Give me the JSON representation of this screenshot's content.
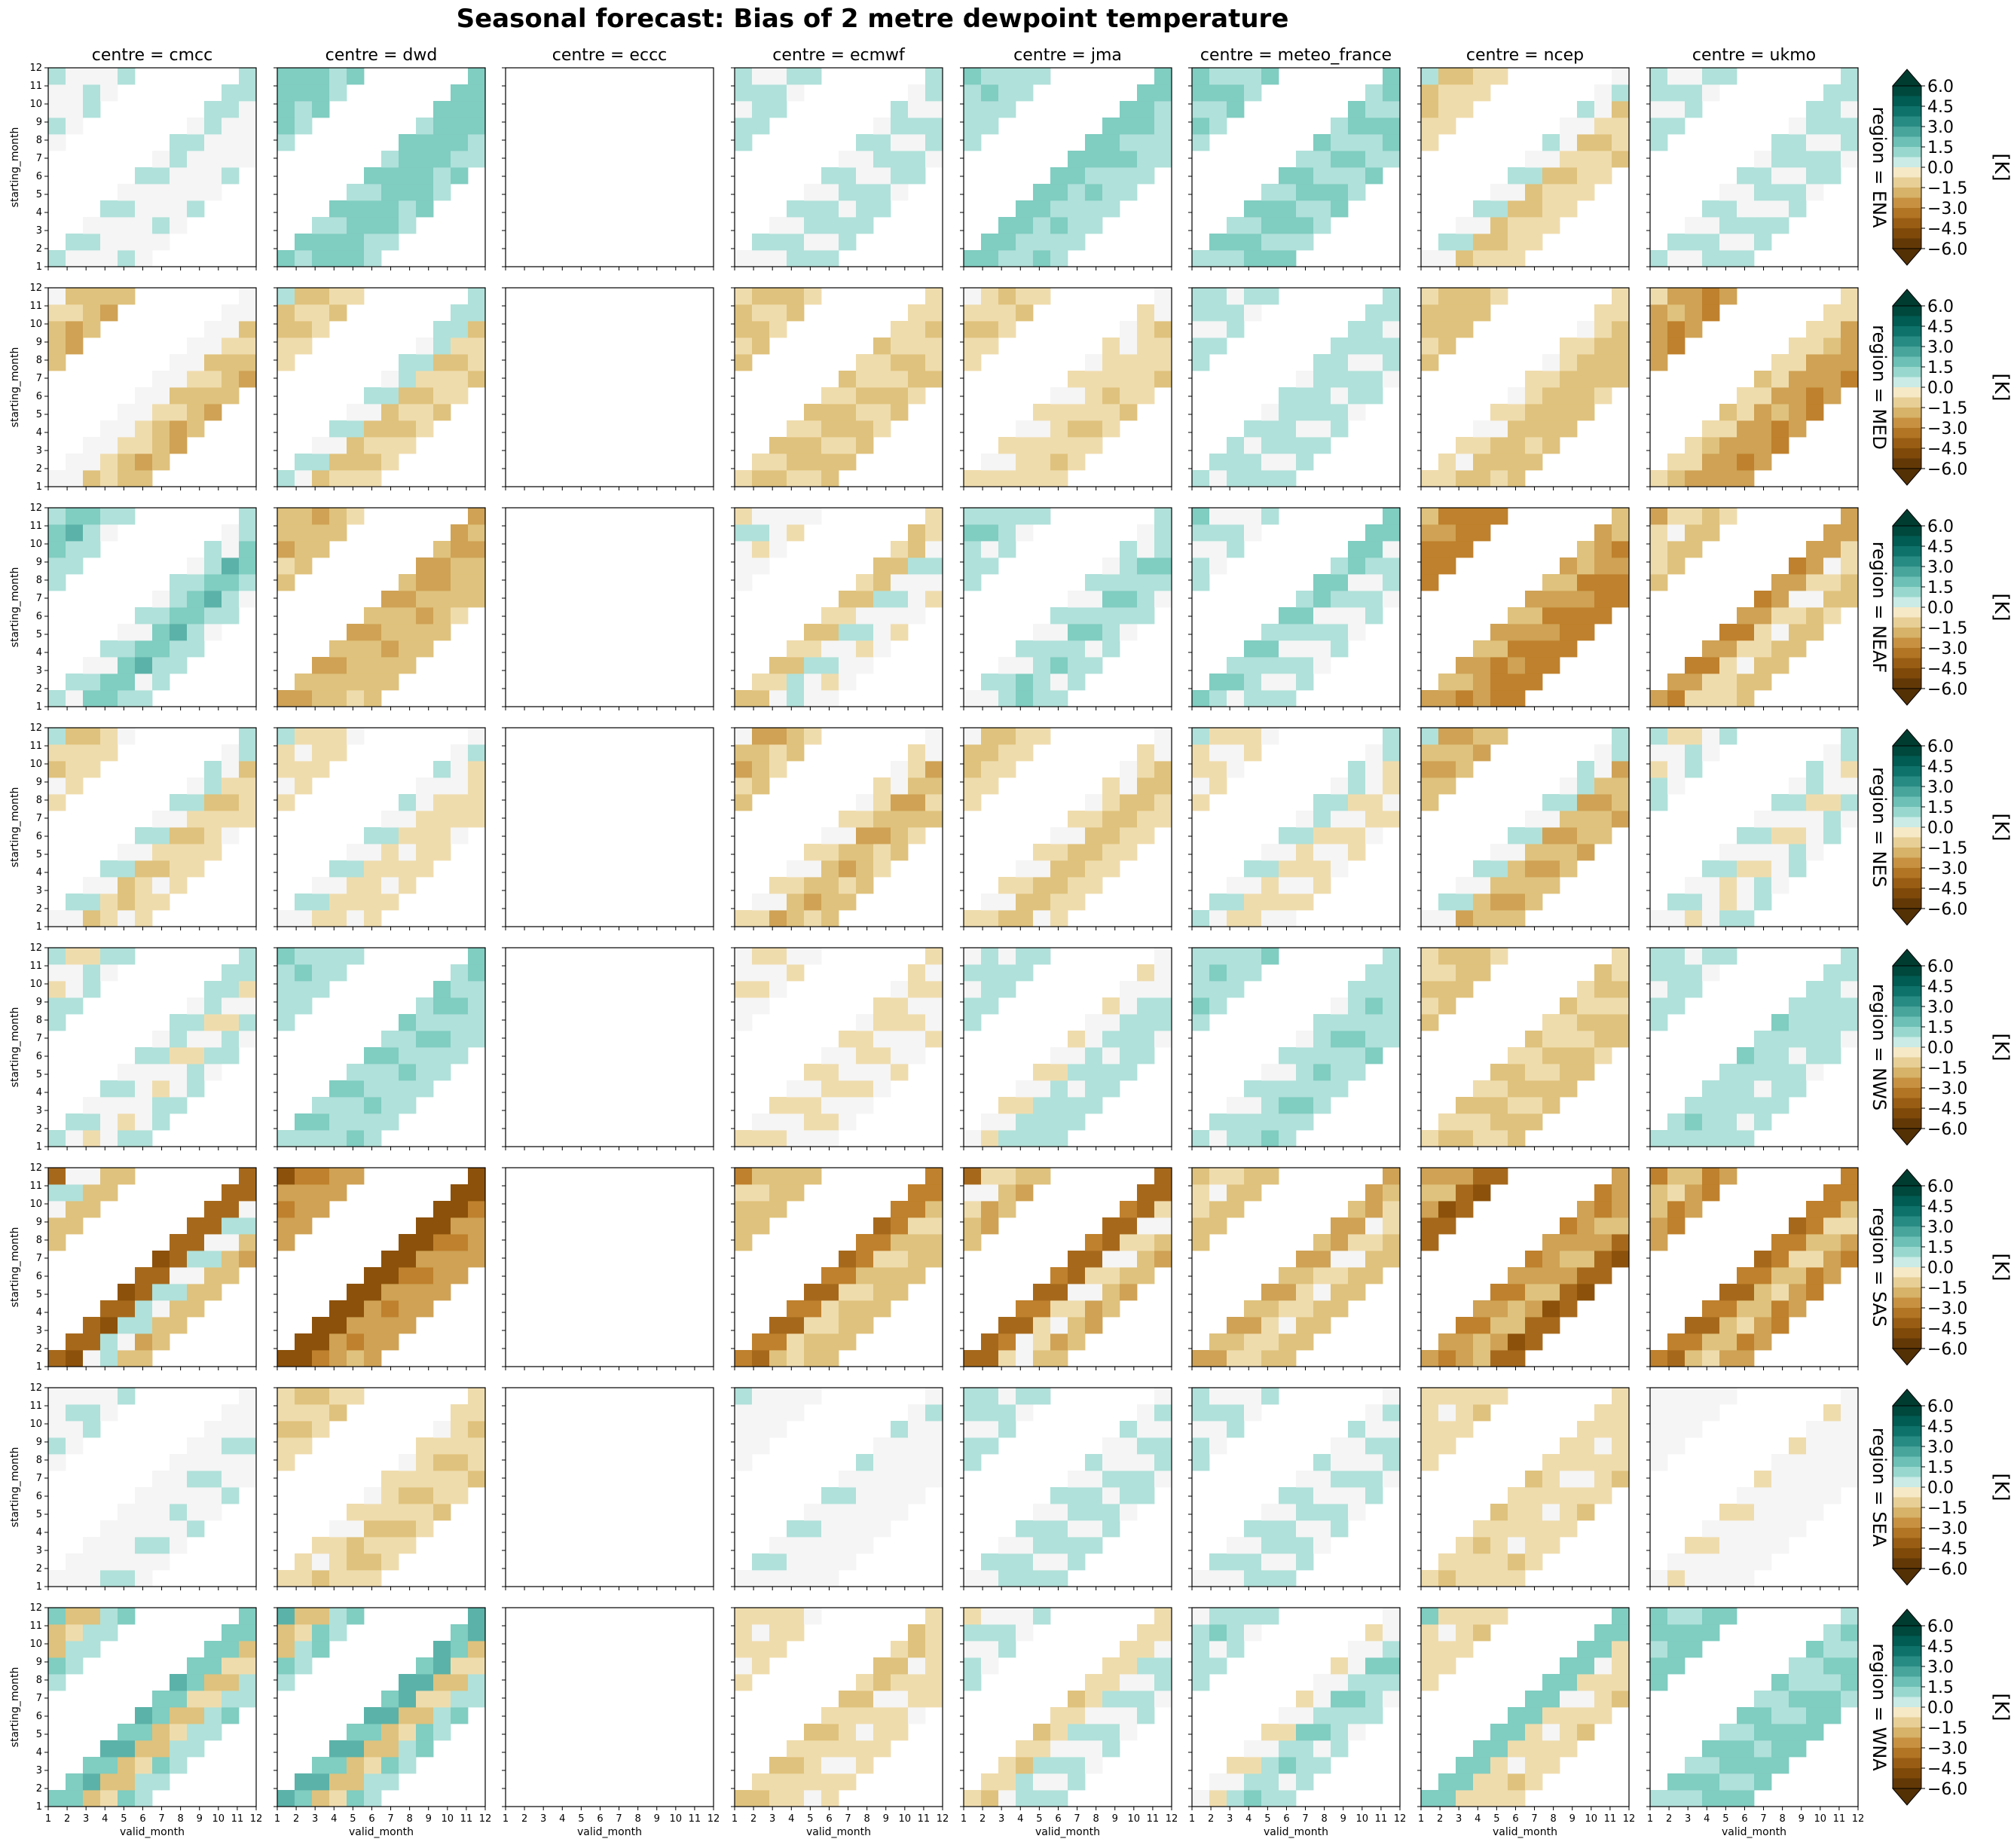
{
  "chart_data": {
    "type": "heatmap",
    "title": "Seasonal forecast: Bias of 2 metre dewpoint temperature",
    "col_facet_prefix": "centre = ",
    "row_facet_prefix": "region = ",
    "columns": [
      "cmcc",
      "dwd",
      "eccc",
      "ecmwf",
      "jma",
      "meteo_france",
      "ncep",
      "ukmo"
    ],
    "rows": [
      "ENA",
      "MED",
      "NEAF",
      "NES",
      "NWS",
      "SAS",
      "SEA",
      "WNA"
    ],
    "xlabel": "valid_month",
    "ylabel": "starting_month",
    "x_ticks": [
      "1",
      "2",
      "3",
      "4",
      "5",
      "6",
      "7",
      "8",
      "9",
      "10",
      "11",
      "12"
    ],
    "y_ticks": [
      "1",
      "2",
      "3",
      "4",
      "5",
      "6",
      "7",
      "8",
      "9",
      "10",
      "11",
      "12"
    ],
    "colorbar": {
      "label": "[K]",
      "ticks": [
        "6.0",
        "4.5",
        "3.0",
        "1.5",
        "0.0",
        "−1.5",
        "−3.0",
        "−4.5",
        "−6.0"
      ],
      "range": [
        -6,
        6
      ],
      "step": 0.75,
      "extend": "both",
      "colormap": "BrBG"
    },
    "approximate_bias_K": {
      "note_empty_column": "eccc",
      "ENA": {
        "cmcc": [
          0.6,
          0.0,
          0.3
        ],
        "dwd": [
          1.3,
          1.5,
          1.0
        ],
        "ecmwf": [
          0.4,
          0.5,
          0.6
        ],
        "jma": [
          1.5,
          0.9,
          0.8
        ],
        "meteo_france": [
          1.1,
          1.3,
          1.1
        ],
        "ncep": [
          0.3,
          -1.3,
          -0.8
        ],
        "ukmo": [
          0.6,
          0.4,
          0.5
        ]
      },
      "MED": {
        "cmcc": [
          -0.2,
          -1.0,
          -1.8
        ],
        "dwd": [
          0.6,
          -1.3,
          -1.0
        ],
        "ecmwf": [
          -0.9,
          -1.3,
          -1.2
        ],
        "jma": [
          -0.4,
          -0.8,
          -1.0
        ],
        "meteo_france": [
          0.7,
          0.6,
          0.5
        ],
        "ncep": [
          -0.6,
          -1.5,
          -1.3
        ],
        "ukmo": [
          -0.8,
          -2.2,
          -2.6
        ]
      },
      "NEAF": {
        "cmcc": [
          0.5,
          1.6,
          0.6
        ],
        "dwd": [
          -2.0,
          -1.6,
          -1.4
        ],
        "ecmwf": [
          -1.2,
          0.4,
          -0.3
        ],
        "jma": [
          0.4,
          1.1,
          0.5
        ],
        "meteo_france": [
          1.3,
          0.4,
          0.4
        ],
        "ncep": [
          -1.8,
          -2.6,
          -3.0
        ],
        "ukmo": [
          -2.4,
          -0.6,
          -1.4
        ]
      },
      "NES": {
        "cmcc": [
          0.4,
          -1.1,
          -0.6
        ],
        "dwd": [
          0.3,
          -0.7,
          -0.6
        ],
        "ecmwf": [
          -0.4,
          -1.8,
          -1.2
        ],
        "jma": [
          -0.4,
          -1.5,
          -0.7
        ],
        "meteo_france": [
          0.5,
          -0.6,
          -0.4
        ],
        "ncep": [
          0.4,
          -1.8,
          -1.7
        ],
        "ukmo": [
          0.4,
          -0.4,
          0.4
        ]
      },
      "NWS": {
        "cmcc": [
          0.6,
          -0.3,
          0.5
        ],
        "dwd": [
          1.1,
          0.9,
          0.8
        ],
        "ecmwf": [
          -0.5,
          -0.4,
          -0.3
        ],
        "jma": [
          -0.3,
          0.7,
          0.7
        ],
        "meteo_france": [
          0.6,
          0.9,
          0.9
        ],
        "ncep": [
          -1.0,
          -1.1,
          -1.3
        ],
        "ukmo": [
          0.8,
          0.7,
          0.6
        ]
      },
      "SAS": {
        "cmcc": [
          -3.8,
          0.5,
          -1.6
        ],
        "dwd": [
          -4.5,
          -2.5,
          -2.2
        ],
        "ecmwf": [
          -3.2,
          -1.0,
          -1.5
        ],
        "jma": [
          -3.6,
          -0.4,
          -1.8
        ],
        "meteo_france": [
          -2.0,
          -0.6,
          -1.5
        ],
        "ncep": [
          -2.5,
          -1.8,
          -4.0
        ],
        "ukmo": [
          -3.2,
          -1.3,
          -2.6
        ]
      },
      "SEA": {
        "cmcc": [
          0.2,
          0.3,
          0.3
        ],
        "dwd": [
          -0.6,
          -1.2,
          -1.0
        ],
        "ecmwf": [
          0.3,
          0.2,
          0.1
        ],
        "jma": [
          0.3,
          0.6,
          0.5
        ],
        "meteo_france": [
          0.3,
          0.5,
          0.4
        ],
        "ncep": [
          -0.8,
          -0.6,
          -0.9
        ],
        "ukmo": [
          -0.3,
          0.2,
          -0.2
        ]
      },
      "WNA": {
        "cmcc": [
          1.6,
          -1.3,
          0.9
        ],
        "dwd": [
          2.0,
          -1.3,
          1.0
        ],
        "ecmwf": [
          -1.2,
          -0.6,
          -0.6
        ],
        "jma": [
          -0.8,
          0.4,
          0.4
        ],
        "meteo_france": [
          -0.3,
          1.0,
          0.5
        ],
        "ncep": [
          1.5,
          -0.6,
          -0.9
        ],
        "ukmo": [
          1.0,
          1.3,
          1.4
        ]
      }
    }
  }
}
